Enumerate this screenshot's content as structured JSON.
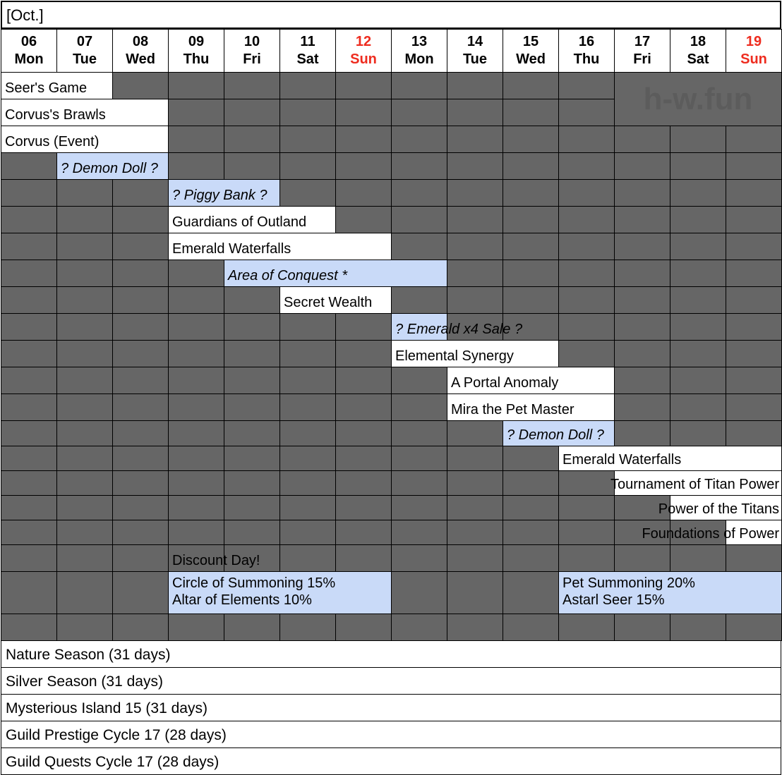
{
  "month_label": "[Oct.]",
  "days": [
    {
      "num": "06",
      "dow": "Mon",
      "sunday": false
    },
    {
      "num": "07",
      "dow": "Tue",
      "sunday": false
    },
    {
      "num": "08",
      "dow": "Wed",
      "sunday": false
    },
    {
      "num": "09",
      "dow": "Thu",
      "sunday": false
    },
    {
      "num": "10",
      "dow": "Fri",
      "sunday": false
    },
    {
      "num": "11",
      "dow": "Sat",
      "sunday": false
    },
    {
      "num": "12",
      "dow": "Sun",
      "sunday": true
    },
    {
      "num": "13",
      "dow": "Mon",
      "sunday": false
    },
    {
      "num": "14",
      "dow": "Tue",
      "sunday": false
    },
    {
      "num": "15",
      "dow": "Wed",
      "sunday": false
    },
    {
      "num": "16",
      "dow": "Thu",
      "sunday": false
    },
    {
      "num": "17",
      "dow": "Fri",
      "sunday": false
    },
    {
      "num": "18",
      "dow": "Sat",
      "sunday": false
    },
    {
      "num": "19",
      "dow": "Sun",
      "sunday": true
    }
  ],
  "watermark": "h-w.fun",
  "events": [
    {
      "row": 0,
      "start": 0,
      "span": 2,
      "style": "white",
      "label": "Seer's Game"
    },
    {
      "row": 1,
      "start": 0,
      "span": 3,
      "style": "white",
      "label": "Corvus's Brawls"
    },
    {
      "row": 2,
      "start": 0,
      "span": 3,
      "style": "white",
      "label": "Corvus (Event)"
    },
    {
      "row": 3,
      "start": 1,
      "span": 2,
      "style": "blue",
      "label": "? Demon Doll ?"
    },
    {
      "row": 4,
      "start": 3,
      "span": 2,
      "style": "blue",
      "label": "? Piggy Bank ?"
    },
    {
      "row": 5,
      "start": 3,
      "span": 3,
      "style": "white",
      "label": "Guardians of Outland"
    },
    {
      "row": 6,
      "start": 3,
      "span": 4,
      "style": "white",
      "label": "Emerald Waterfalls"
    },
    {
      "row": 7,
      "start": 4,
      "span": 4,
      "style": "blue",
      "label": "Area of Conquest *"
    },
    {
      "row": 8,
      "start": 5,
      "span": 2,
      "style": "white",
      "label": "Secret Wealth"
    },
    {
      "row": 9,
      "start": 7,
      "span": 1,
      "style": "blue",
      "label": "? Emerald x4 Sale ?"
    },
    {
      "row": 10,
      "start": 7,
      "span": 3,
      "style": "white",
      "label": "Elemental Synergy"
    },
    {
      "row": 11,
      "start": 8,
      "span": 3,
      "style": "white",
      "label": "A Portal Anomaly"
    },
    {
      "row": 12,
      "start": 8,
      "span": 3,
      "style": "white",
      "label": "Mira the Pet Master"
    },
    {
      "row": 13,
      "start": 9,
      "span": 2,
      "style": "blue",
      "label": "? Demon Doll ?"
    },
    {
      "row": 14,
      "start": 10,
      "span": 4,
      "style": "white",
      "label": "Emerald Waterfalls"
    },
    {
      "row": 15,
      "start": 11,
      "span": 3,
      "style": "white",
      "align": "right",
      "label": "Tournament of Titan Power"
    },
    {
      "row": 16,
      "start": 12,
      "span": 2,
      "style": "white",
      "align": "right",
      "label": "Power of the Titans"
    },
    {
      "row": 17,
      "start": 13,
      "span": 1,
      "style": "white",
      "align": "right",
      "label": "Foundations of Power"
    },
    {
      "row": 18,
      "start": 3,
      "span": 1,
      "style": "none",
      "label": "Discount Day!"
    },
    {
      "row": 19,
      "start": 3,
      "span": 4,
      "style": "blue",
      "label": "Circle of Summoning 15%\nAltar of Elements 10%"
    },
    {
      "row": 19,
      "start": 10,
      "span": 4,
      "style": "blue",
      "label": "Pet Summoning 20%\nAstarl Seer 15%"
    }
  ],
  "seasons": [
    "Nature Season (31 days)",
    "Silver Season (31 days)",
    "Mysterious Island 15 (31 days)",
    "Guild Prestige Cycle 17 (28 days)",
    "Guild Quests Cycle 17 (28 days)"
  ],
  "colors": {
    "grey_cell": "#666666",
    "highlight_blue": "#c9daf8",
    "sunday_red": "#ee2c1f"
  }
}
